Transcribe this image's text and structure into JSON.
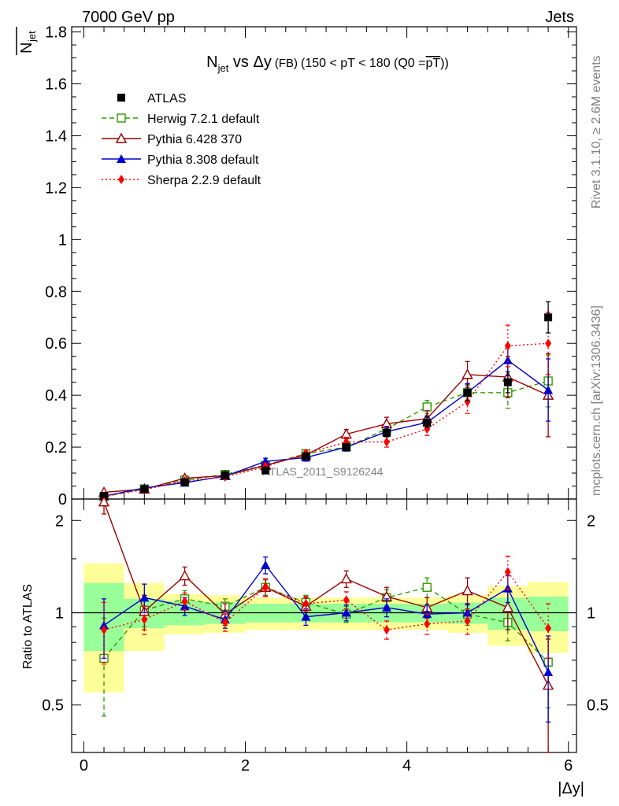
{
  "header": {
    "left": "7000 GeV pp",
    "right": "Jets"
  },
  "side_labels": {
    "rivet": "Rivet 3.1.10, ≥ 2.6M events",
    "mcplots": "mcplots.cern.ch [arXiv:1306.3436]"
  },
  "chart_data": [
    {
      "type": "line",
      "panel": "main",
      "title": {
        "main": "N",
        "sub": "jet",
        "rest": " vs Δy",
        "small": "(FB)",
        "cond": "(150 < pT < 180 (Q0 =",
        "overline": "pT",
        "close": "))"
      },
      "ylabel": {
        "main": "N",
        "sub": "jet",
        "overline": true
      },
      "watermark": "ATLAS_2011_S9126244",
      "xlim": [
        -0.15,
        6.1
      ],
      "ylim": [
        0,
        1.82
      ],
      "yticks": [
        "0",
        "0.2",
        "0.4",
        "0.6",
        "0.8",
        "1",
        "1.2",
        "1.4",
        "1.6",
        "1.8"
      ],
      "x": [
        0.25,
        0.75,
        1.25,
        1.75,
        2.25,
        2.75,
        3.25,
        3.75,
        4.25,
        4.75,
        5.25,
        5.75
      ],
      "series": [
        {
          "name": "ATLAS",
          "color": "#000000",
          "marker": "square-filled",
          "line": "none",
          "values": [
            0.012,
            0.038,
            0.065,
            0.092,
            0.11,
            0.165,
            0.2,
            0.255,
            0.295,
            0.41,
            0.45,
            0.7
          ],
          "errors": [
            0.003,
            0.004,
            0.005,
            0.006,
            0.008,
            0.01,
            0.012,
            0.015,
            0.02,
            0.03,
            0.04,
            0.06
          ]
        },
        {
          "name": "Herwig 7.2.1 default",
          "color": "#339900",
          "marker": "square-open",
          "line": "dashed",
          "values": [
            0.009,
            0.039,
            0.073,
            0.095,
            0.13,
            0.175,
            0.2,
            0.27,
            0.355,
            0.41,
            0.41,
            0.455
          ],
          "errors": [
            0.004,
            0.005,
            0.006,
            0.007,
            0.01,
            0.012,
            0.015,
            0.02,
            0.025,
            0.035,
            0.06,
            0.1
          ]
        },
        {
          "name": "Pythia 6.428 370",
          "color": "#990000",
          "marker": "triangle-open",
          "line": "solid",
          "values": [
            0.026,
            0.038,
            0.08,
            0.09,
            0.13,
            0.17,
            0.25,
            0.29,
            0.31,
            0.48,
            0.47,
            0.4
          ],
          "errors": [
            0.004,
            0.005,
            0.008,
            0.008,
            0.012,
            0.014,
            0.018,
            0.025,
            0.03,
            0.05,
            0.08,
            0.16
          ]
        },
        {
          "name": "Pythia 8.308 default",
          "color": "#0000cc",
          "marker": "triangle-filled",
          "line": "solid",
          "values": [
            0.011,
            0.043,
            0.063,
            0.088,
            0.145,
            0.16,
            0.2,
            0.26,
            0.295,
            0.41,
            0.535,
            0.42
          ],
          "errors": [
            0.003,
            0.005,
            0.006,
            0.008,
            0.012,
            0.014,
            0.015,
            0.02,
            0.025,
            0.035,
            0.06,
            0.12
          ]
        },
        {
          "name": "Sherpa 2.2.9 default",
          "color": "#ff0000",
          "marker": "diamond-filled",
          "line": "dotted",
          "values": [
            0.011,
            0.036,
            0.07,
            0.085,
            0.125,
            0.175,
            0.22,
            0.22,
            0.27,
            0.375,
            0.59,
            0.6
          ],
          "errors": [
            0.003,
            0.005,
            0.006,
            0.008,
            0.012,
            0.014,
            0.018,
            0.02,
            0.025,
            0.045,
            0.08,
            0.12
          ]
        }
      ]
    },
    {
      "type": "line",
      "panel": "ratio",
      "ylabel": "Ratio to ATLAS",
      "xlabel": "|Δy|",
      "xlim": [
        -0.15,
        6.1
      ],
      "ylim": [
        0.35,
        2.35
      ],
      "xticks": [
        "0",
        "2",
        "4",
        "6"
      ],
      "yticks": [
        "0.5",
        "1",
        "2"
      ],
      "x": [
        0.25,
        0.75,
        1.25,
        1.75,
        2.25,
        2.75,
        3.25,
        3.75,
        4.25,
        4.75,
        5.25,
        5.75
      ],
      "bins": [
        [
          0.0,
          0.5
        ],
        [
          0.5,
          1.0
        ],
        [
          1.0,
          1.5
        ],
        [
          1.5,
          2.0
        ],
        [
          2.0,
          2.5
        ],
        [
          2.5,
          3.0
        ],
        [
          3.0,
          3.5
        ],
        [
          3.5,
          4.0
        ],
        [
          4.0,
          4.5
        ],
        [
          4.5,
          5.0
        ],
        [
          5.0,
          5.5
        ],
        [
          5.5,
          6.0
        ]
      ],
      "band_inner": [
        0.25,
        0.11,
        0.09,
        0.08,
        0.07,
        0.07,
        0.07,
        0.07,
        0.07,
        0.08,
        0.12,
        0.13
      ],
      "band_outer": [
        0.45,
        0.25,
        0.15,
        0.14,
        0.12,
        0.12,
        0.12,
        0.12,
        0.12,
        0.14,
        0.22,
        0.26
      ],
      "series": [
        {
          "name": "Herwig 7.2.1 default",
          "color": "#339900",
          "marker": "square-open",
          "line": "dashed",
          "values": [
            0.71,
            1.02,
            1.11,
            1.05,
            1.21,
            1.08,
            0.99,
            1.12,
            1.21,
            0.99,
            0.93,
            0.69
          ],
          "errors": [
            0.25,
            0.12,
            0.07,
            0.06,
            0.07,
            0.06,
            0.06,
            0.07,
            0.09,
            0.08,
            0.12,
            0.2
          ]
        },
        {
          "name": "Pythia 6.428 370",
          "color": "#990000",
          "marker": "triangle-open",
          "line": "solid",
          "values": [
            2.3,
            1.01,
            1.32,
            0.99,
            1.21,
            1.05,
            1.29,
            1.13,
            1.04,
            1.18,
            1.04,
            0.58
          ],
          "errors": [
            0.2,
            0.13,
            0.09,
            0.08,
            0.08,
            0.07,
            0.08,
            0.08,
            0.08,
            0.12,
            0.16,
            0.24
          ]
        },
        {
          "name": "Pythia 8.308 default",
          "color": "#0000cc",
          "marker": "triangle-filled",
          "line": "solid",
          "values": [
            0.91,
            1.12,
            1.05,
            0.95,
            1.43,
            0.97,
            1.0,
            1.04,
            0.99,
            1.0,
            1.2,
            0.64
          ],
          "errors": [
            0.2,
            0.12,
            0.07,
            0.06,
            0.09,
            0.06,
            0.06,
            0.07,
            0.07,
            0.07,
            0.12,
            0.2
          ]
        },
        {
          "name": "Sherpa 2.2.9 default",
          "color": "#ff0000",
          "marker": "diamond-filled",
          "line": "dotted",
          "values": [
            0.88,
            0.95,
            1.09,
            0.93,
            1.21,
            1.07,
            1.1,
            0.88,
            0.92,
            0.94,
            1.36,
            0.89
          ],
          "errors": [
            0.2,
            0.1,
            0.07,
            0.06,
            0.08,
            0.06,
            0.07,
            0.06,
            0.07,
            0.09,
            0.17,
            0.18
          ]
        }
      ]
    }
  ]
}
